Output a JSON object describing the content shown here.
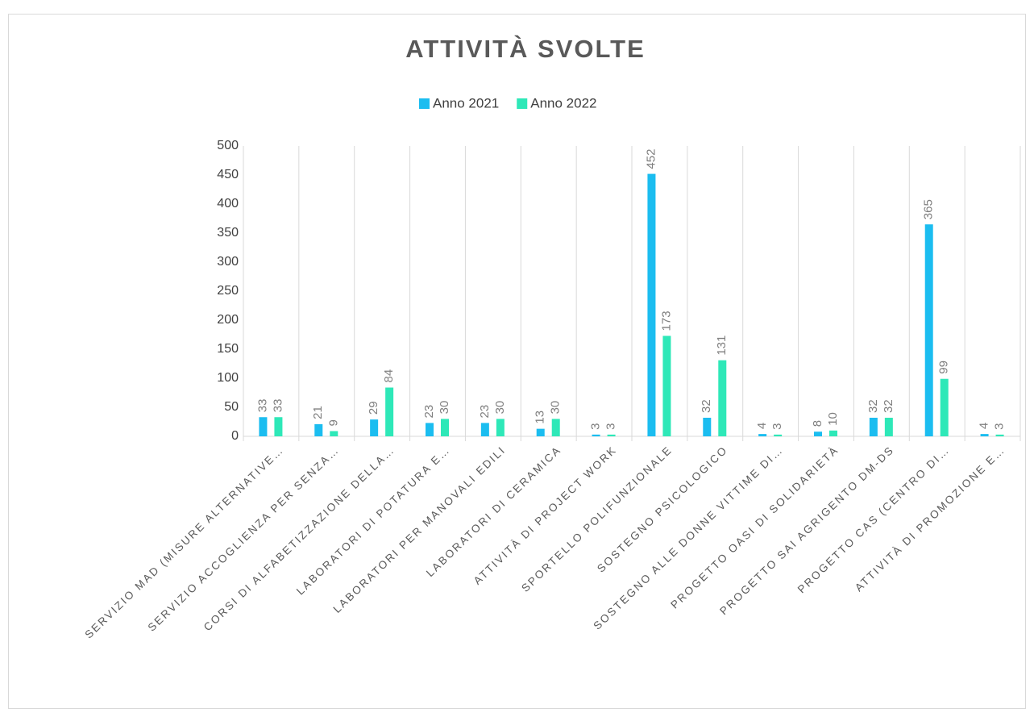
{
  "chart_data": {
    "type": "bar",
    "title": "ATTIVITÀ SVOLTE",
    "categories": [
      "SERVIZIO MAD (MISURE ALTERNATIVE…",
      "SERVIZIO ACCOGLIENZA PER SENZA…",
      "CORSI DI ALFABETIZZAZIONE DELLA…",
      "LABORATORI DI POTATURA E…",
      "LABORATORI PER MANOVALI EDILI",
      "LABORATORI DI CERAMICA",
      "ATTIVITÀ DI PROJECT WORK",
      "SPORTELLO POLIFUNZIONALE",
      "SOSTEGNO PSICOLOGICO",
      "SOSTEGNO ALLE DONNE VITTIME DI…",
      "PROGETTO OASI DI SOLIDARIETÀ",
      "PROGETTO SAI AGRIGENTO DM-DS",
      "PROGETTO CAS (CENTRO DI…",
      "ATTIVITÀ DI PROMOZIONE E…"
    ],
    "series": [
      {
        "name": "Anno 2021",
        "color": "#1bbdf0",
        "values": [
          33,
          21,
          29,
          23,
          23,
          13,
          3,
          452,
          32,
          4,
          8,
          32,
          365,
          4
        ]
      },
      {
        "name": "Anno 2022",
        "color": "#2ee8b8",
        "values": [
          33,
          9,
          84,
          30,
          30,
          30,
          3,
          173,
          131,
          3,
          10,
          32,
          99,
          3
        ]
      }
    ],
    "ylim": [
      0,
      500
    ],
    "yticks": [
      0,
      50,
      100,
      150,
      200,
      250,
      300,
      350,
      400,
      450,
      500
    ],
    "legend": "top"
  }
}
